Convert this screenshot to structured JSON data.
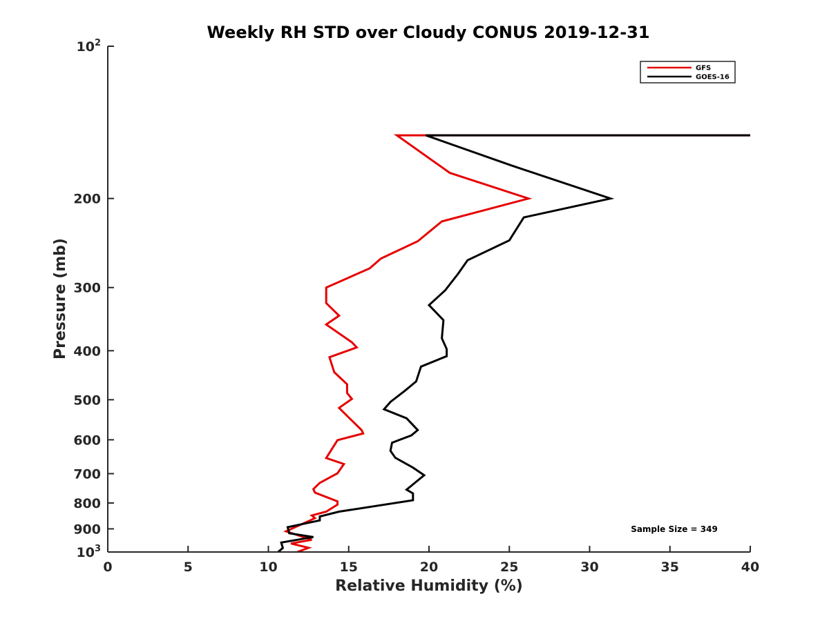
{
  "chart_data": {
    "type": "line",
    "title": "Weekly RH STD over Cloudy CONUS 2019-12-31",
    "xlabel": "Relative Humidity (%)",
    "ylabel": "Pressure (mb)",
    "xlim": [
      0,
      40
    ],
    "ylim": [
      100,
      1000
    ],
    "yscale": "log",
    "y_reversed": true,
    "x_ticks": [
      "0",
      "5",
      "10",
      "15",
      "20",
      "25",
      "30",
      "35",
      "40"
    ],
    "y_ticks": [
      {
        "value": 100,
        "base": "10",
        "exp": "2",
        "label": ""
      },
      {
        "value": 200,
        "label": "200"
      },
      {
        "value": 300,
        "label": "300"
      },
      {
        "value": 400,
        "label": "400"
      },
      {
        "value": 500,
        "label": "500"
      },
      {
        "value": 600,
        "label": "600"
      },
      {
        "value": 700,
        "label": "700"
      },
      {
        "value": 800,
        "label": "800"
      },
      {
        "value": 900,
        "label": "900"
      },
      {
        "value": 1000,
        "base": "10",
        "exp": "3",
        "label": ""
      }
    ],
    "legend": {
      "position": "top-right",
      "entries": [
        "GFS",
        "GOES-16"
      ]
    },
    "annotation": "Sample Size = 349",
    "series": [
      {
        "name": "GFS",
        "color": "#e60000",
        "points": [
          [
            40,
            150
          ],
          [
            18.0,
            150
          ],
          [
            21.3,
            178
          ],
          [
            26.2,
            200
          ],
          [
            20.8,
            222
          ],
          [
            19.3,
            243
          ],
          [
            17.0,
            263
          ],
          [
            16.3,
            275
          ],
          [
            13.6,
            300
          ],
          [
            13.6,
            322
          ],
          [
            14.4,
            341
          ],
          [
            13.6,
            355
          ],
          [
            15.2,
            385
          ],
          [
            15.5,
            394
          ],
          [
            13.8,
            412
          ],
          [
            14.1,
            441
          ],
          [
            14.9,
            466
          ],
          [
            14.9,
            485
          ],
          [
            15.2,
            498
          ],
          [
            14.4,
            519
          ],
          [
            14.9,
            538
          ],
          [
            15.8,
            574
          ],
          [
            15.9,
            583
          ],
          [
            14.3,
            601
          ],
          [
            13.6,
            652
          ],
          [
            14.7,
            670
          ],
          [
            14.3,
            699
          ],
          [
            13.2,
            730
          ],
          [
            12.8,
            751
          ],
          [
            12.9,
            763
          ],
          [
            14.3,
            794
          ],
          [
            14.3,
            806
          ],
          [
            13.6,
            832
          ],
          [
            12.7,
            847
          ],
          [
            12.9,
            857
          ],
          [
            12.5,
            869
          ],
          [
            11.9,
            886
          ],
          [
            11.1,
            910
          ],
          [
            12.7,
            946
          ],
          [
            11.4,
            962
          ],
          [
            12.5,
            981
          ],
          [
            11.8,
            1000
          ]
        ]
      },
      {
        "name": "GOES-16",
        "color": "#000000",
        "points": [
          [
            40,
            150
          ],
          [
            19.8,
            150
          ],
          [
            25.1,
            172
          ],
          [
            31.3,
            200
          ],
          [
            25.9,
            218
          ],
          [
            25.0,
            242
          ],
          [
            22.4,
            265
          ],
          [
            21.8,
            282
          ],
          [
            21.0,
            304
          ],
          [
            20.0,
            325
          ],
          [
            20.9,
            348
          ],
          [
            20.8,
            378
          ],
          [
            21.1,
            397
          ],
          [
            21.1,
            410
          ],
          [
            19.5,
            430
          ],
          [
            19.2,
            460
          ],
          [
            18.5,
            480
          ],
          [
            17.6,
            505
          ],
          [
            17.2,
            522
          ],
          [
            18.6,
            544
          ],
          [
            19.3,
            574
          ],
          [
            18.9,
            588
          ],
          [
            17.7,
            608
          ],
          [
            17.6,
            631
          ],
          [
            17.9,
            651
          ],
          [
            19.0,
            681
          ],
          [
            19.7,
            705
          ],
          [
            19.0,
            735
          ],
          [
            18.6,
            753
          ],
          [
            19.0,
            766
          ],
          [
            19.0,
            790
          ],
          [
            14.4,
            832
          ],
          [
            13.2,
            851
          ],
          [
            13.2,
            866
          ],
          [
            11.2,
            893
          ],
          [
            11.3,
            918
          ],
          [
            12.8,
            934
          ],
          [
            10.8,
            958
          ],
          [
            10.9,
            982
          ],
          [
            10.6,
            1000
          ]
        ]
      }
    ]
  }
}
